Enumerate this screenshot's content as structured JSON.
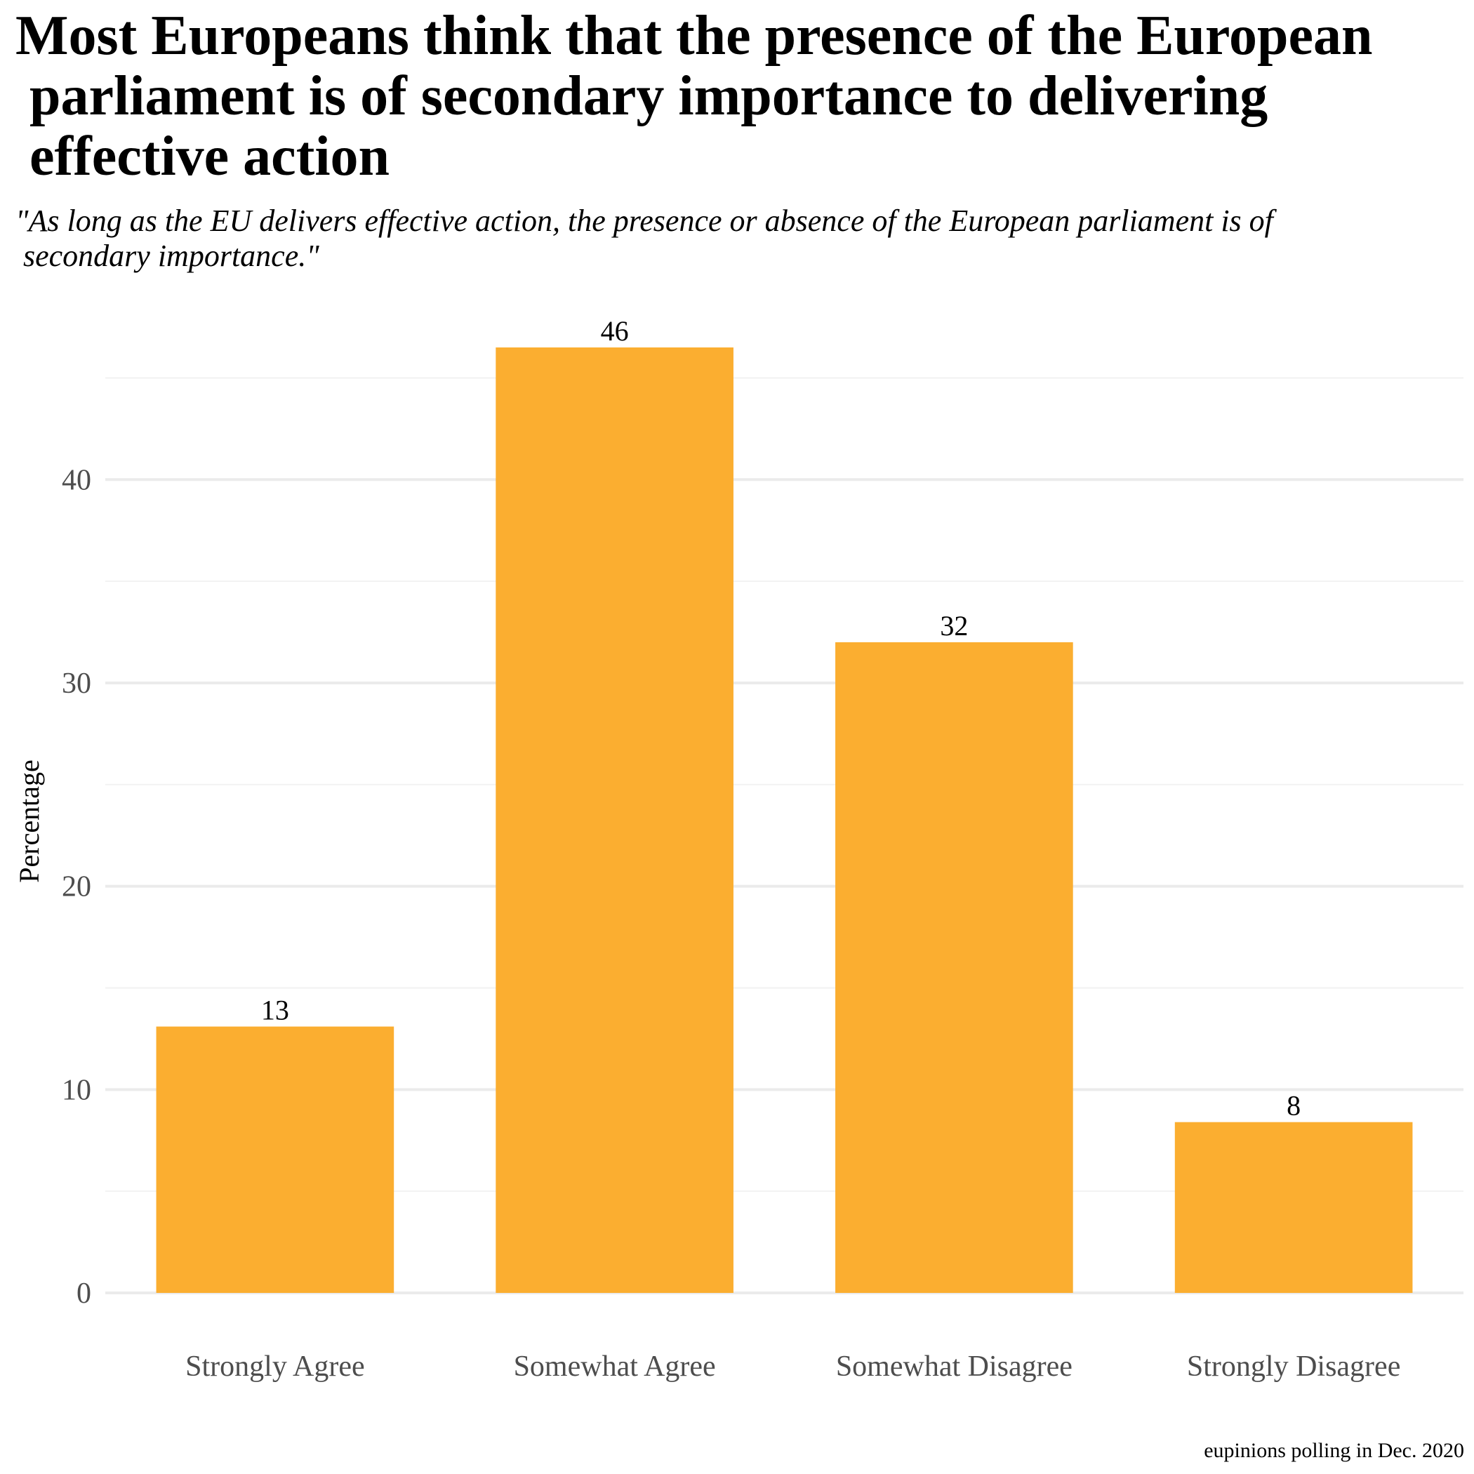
{
  "chart_data": {
    "type": "bar",
    "title": "Most Europeans think that the presence of the European\n parliament is of secondary importance to delivering\n effective action",
    "subtitle": "\"As long as the EU delivers effective action, the presence or absence of the European parliament is of\n secondary importance.\"",
    "categories": [
      "Strongly Agree",
      "Somewhat Agree",
      "Somewhat Disagree",
      "Strongly Disagree"
    ],
    "values": [
      13.1,
      46.5,
      32,
      8.4
    ],
    "data_labels": [
      "13",
      "46",
      "32",
      "8"
    ],
    "xlabel": "",
    "ylabel": "Percentage",
    "ylim": [
      0,
      46.5
    ],
    "yticks": [
      0,
      10,
      20,
      30,
      40
    ],
    "ytick_labels": [
      "0",
      "10",
      "20",
      "30",
      "40"
    ],
    "grid": true,
    "legend": "none",
    "caption": "eupinions polling in Dec. 2020"
  },
  "colors": {
    "bar": "#FBAE30",
    "grid_major": "#EBEBEB",
    "grid_minor": "#F2F2F2",
    "tick_text": "#4D4D4D",
    "text": "#000000"
  }
}
